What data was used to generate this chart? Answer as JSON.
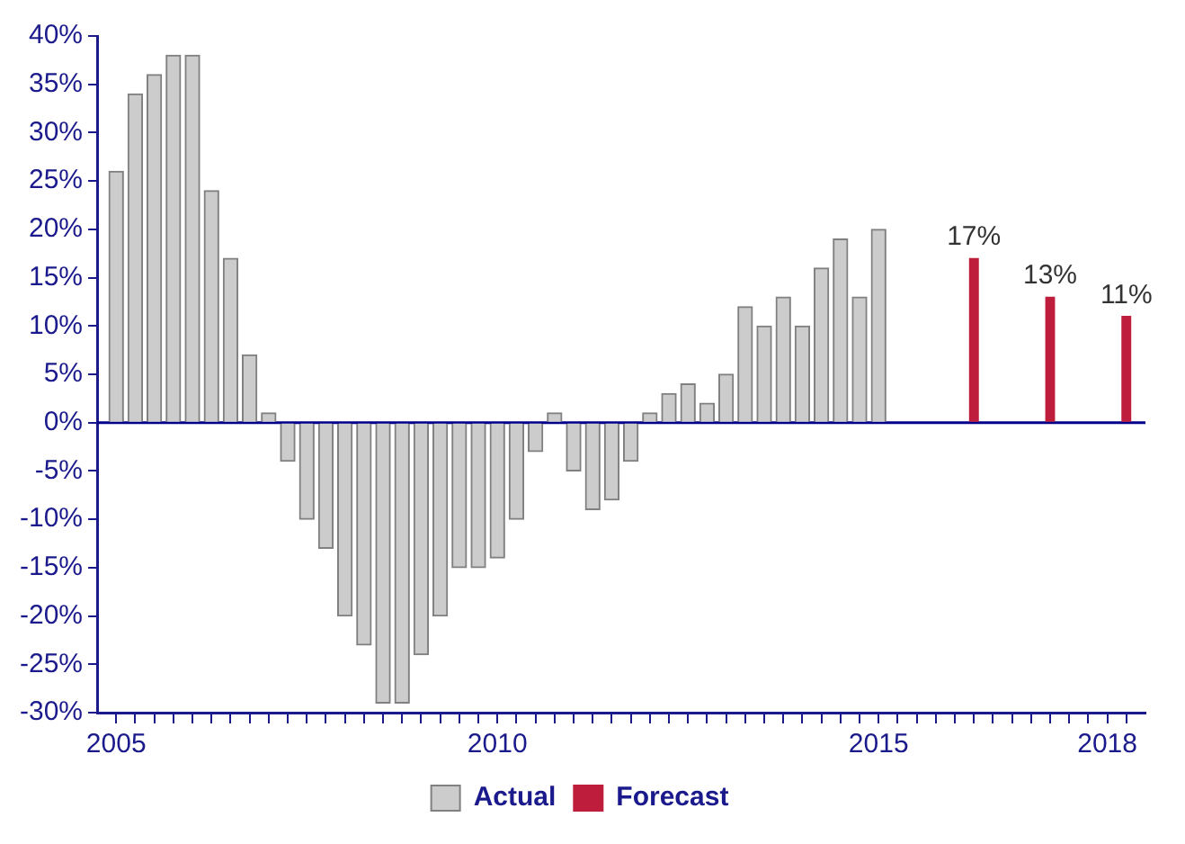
{
  "chart_data": {
    "type": "bar",
    "legend": "bottom",
    "grid": false,
    "xlim": [
      2004.75,
      2018.5
    ],
    "xticks": [
      2005,
      {
        "value": 2005.25,
        "label": null
      },
      {
        "value": 2005.5,
        "label": null
      },
      {
        "value": 2005.75,
        "label": null
      },
      {
        "value": 2006,
        "label": null
      },
      {
        "value": 2006.25,
        "label": null
      },
      {
        "value": 2006.5,
        "label": null
      },
      {
        "value": 2006.75,
        "label": null
      },
      {
        "value": 2007,
        "label": null
      },
      {
        "value": 2007.25,
        "label": null
      },
      {
        "value": 2007.5,
        "label": null
      },
      {
        "value": 2007.75,
        "label": null
      },
      {
        "value": 2008,
        "label": null
      },
      {
        "value": 2008.25,
        "label": null
      },
      {
        "value": 2008.5,
        "label": null
      },
      {
        "value": 2008.75,
        "label": null
      },
      {
        "value": 2009,
        "label": null
      },
      {
        "value": 2009.25,
        "label": null
      },
      {
        "value": 2009.5,
        "label": null
      },
      {
        "value": 2009.75,
        "label": null
      },
      2010,
      {
        "value": 2010.25,
        "label": null
      },
      {
        "value": 2010.5,
        "label": null
      },
      {
        "value": 2010.75,
        "label": null
      },
      {
        "value": 2011,
        "label": null
      },
      {
        "value": 2011.25,
        "label": null
      },
      {
        "value": 2011.5,
        "label": null
      },
      {
        "value": 2011.75,
        "label": null
      },
      {
        "value": 2012,
        "label": null
      },
      {
        "value": 2012.25,
        "label": null
      },
      {
        "value": 2012.5,
        "label": null
      },
      {
        "value": 2012.75,
        "label": null
      },
      {
        "value": 2013,
        "label": null
      },
      {
        "value": 2013.25,
        "label": null
      },
      {
        "value": 2013.5,
        "label": null
      },
      {
        "value": 2013.75,
        "label": null
      },
      {
        "value": 2014,
        "label": null
      },
      {
        "value": 2014.25,
        "label": null
      },
      {
        "value": 2014.5,
        "label": null
      },
      {
        "value": 2014.75,
        "label": null
      },
      2015,
      {
        "value": 2015.25,
        "label": null
      },
      {
        "value": 2015.5,
        "label": null
      },
      {
        "value": 2015.75,
        "label": null
      },
      {
        "value": 2016,
        "label": null
      },
      {
        "value": 2016.25,
        "label": null
      },
      {
        "value": 2016.5,
        "label": null
      },
      {
        "value": 2016.75,
        "label": null
      },
      {
        "value": 2017,
        "label": null
      },
      {
        "value": 2017.25,
        "label": null
      },
      {
        "value": 2017.5,
        "label": null
      },
      {
        "value": 2017.75,
        "label": null
      },
      2018,
      {
        "value": 2018.25,
        "label": null
      }
    ],
    "ylim": [
      -30,
      40
    ],
    "yticks": [
      {
        "value": -30,
        "label": "-30%"
      },
      {
        "value": -25,
        "label": "-25%"
      },
      {
        "value": -20,
        "label": "-20%"
      },
      {
        "value": -15,
        "label": "-15%"
      },
      {
        "value": -10,
        "label": "-10%"
      },
      {
        "value": -5,
        "label": "-5%"
      },
      {
        "value": 0,
        "label": "0%"
      },
      {
        "value": 5,
        "label": "5%"
      },
      {
        "value": 10,
        "label": "10%"
      },
      {
        "value": 15,
        "label": "15%"
      },
      {
        "value": 20,
        "label": "20%"
      },
      {
        "value": 25,
        "label": "25%"
      },
      {
        "value": 30,
        "label": "30%"
      },
      {
        "value": 35,
        "label": "35%"
      },
      {
        "value": 40,
        "label": "40%"
      }
    ],
    "ref_lines": [
      {
        "axis": "y",
        "value": 0,
        "color": "#00008b"
      }
    ],
    "series": [
      {
        "name": "Actual",
        "color": "#cccccc",
        "x": [
          2005,
          2005.25,
          2005.5,
          2005.75,
          2006,
          2006.25,
          2006.5,
          2006.75,
          2007,
          2007.25,
          2007.5,
          2007.75,
          2008,
          2008.25,
          2008.5,
          2008.75,
          2009,
          2009.25,
          2009.5,
          2009.75,
          2010,
          2010.25,
          2010.5,
          2010.75,
          2011,
          2011.25,
          2011.5,
          2011.75,
          2012,
          2012.25,
          2012.5,
          2012.75,
          2013,
          2013.25,
          2013.5,
          2013.75,
          2014,
          2014.25,
          2014.5,
          2014.75,
          2015
        ],
        "values": [
          26,
          34,
          36,
          38,
          38,
          24,
          17,
          7,
          1,
          -4,
          -10,
          -13,
          -20,
          -23,
          -29,
          -29,
          -24,
          -20,
          -15,
          -15,
          -14,
          -10,
          -3,
          1,
          -5,
          -9,
          -8,
          -4,
          1,
          3,
          4,
          2,
          5,
          12,
          10,
          13,
          10,
          16,
          19,
          13,
          20
        ]
      },
      {
        "name": "Forecast",
        "color": "#be1e3c",
        "x": [
          2016.25,
          2017.25,
          2018.25
        ],
        "values": [
          17,
          13,
          11
        ],
        "value_labels": [
          "17%",
          "13%",
          "11%"
        ]
      }
    ]
  }
}
